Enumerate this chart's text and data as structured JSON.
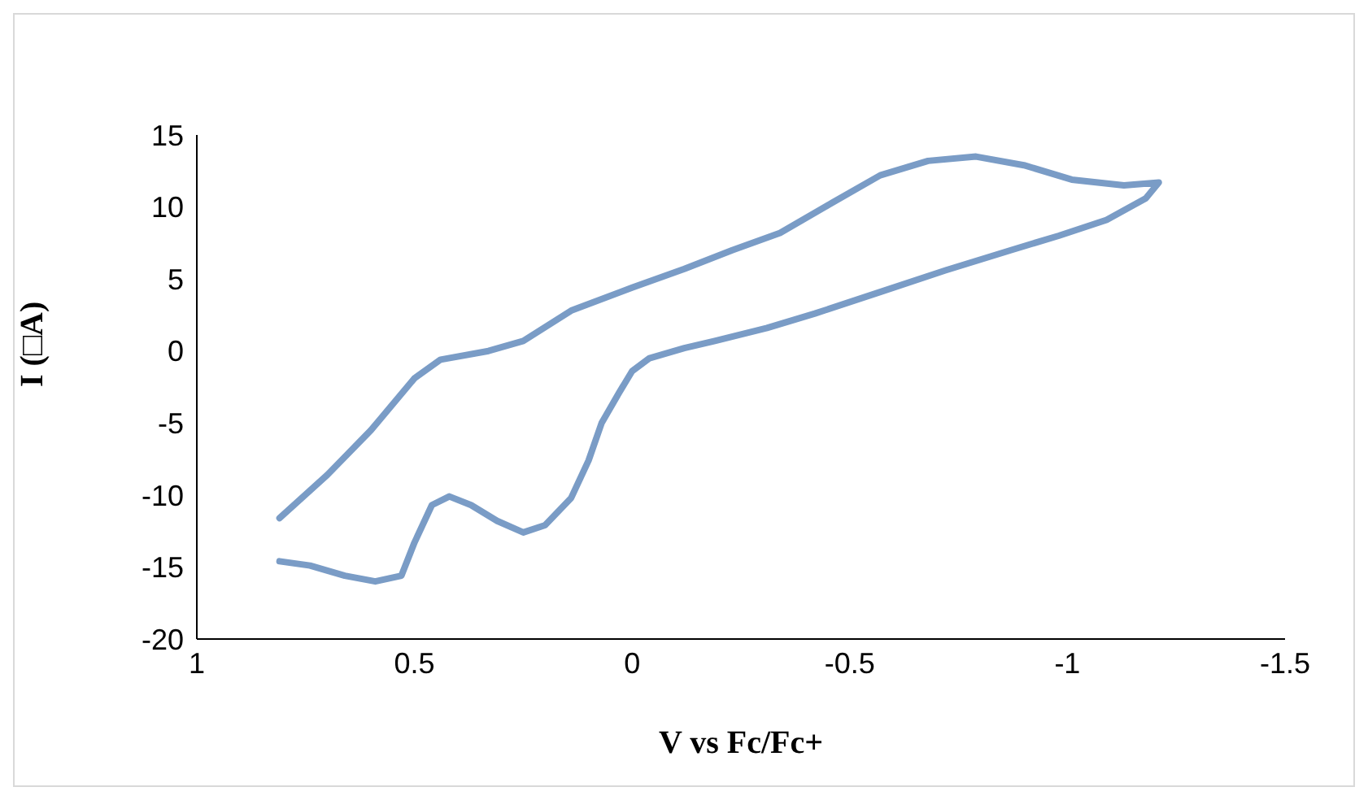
{
  "chart_data": {
    "type": "line",
    "xlabel": "V vs Fc/Fc+",
    "ylabel": "I (□A)",
    "xlim": [
      1,
      -1.5
    ],
    "xticks": [
      1,
      0.5,
      0,
      -0.5,
      -1,
      -1.5
    ],
    "ylim": [
      -20,
      15
    ],
    "yticks": [
      -20,
      -15,
      -10,
      -5,
      0,
      5,
      10,
      15
    ],
    "grid": false,
    "legend": false,
    "marker": "none",
    "line_style": "solid",
    "series": [
      {
        "color": "#7a9cc6",
        "x": [
          0.81,
          0.7,
          0.6,
          0.5,
          0.44,
          0.33,
          0.25,
          0.14,
          0,
          -0.12,
          -0.23,
          -0.34,
          -0.46,
          -0.57,
          -0.68,
          -0.79,
          -0.9,
          -1.01,
          -1.13,
          -1.21,
          -1.18,
          -1.09,
          -0.98,
          -0.87,
          -0.72,
          -0.57,
          -0.42,
          -0.31,
          -0.19,
          -0.12,
          -0.04,
          0,
          0.03,
          0.07,
          0.1,
          0.14,
          0.2,
          0.25,
          0.31,
          0.37,
          0.42,
          0.46,
          0.5,
          0.53,
          0.59,
          0.66,
          0.74,
          0.81
        ],
        "values": [
          -11.6,
          -8.6,
          -5.5,
          -1.9,
          -0.6,
          0,
          0.7,
          2.8,
          4.4,
          5.7,
          7,
          8.2,
          10.3,
          12.2,
          13.2,
          13.5,
          12.9,
          11.9,
          11.5,
          11.7,
          10.6,
          9.1,
          8,
          7,
          5.6,
          4.1,
          2.6,
          1.6,
          0.7,
          0.2,
          -0.5,
          -1.4,
          -2.9,
          -5,
          -7.6,
          -10.2,
          -12.1,
          -12.6,
          -11.8,
          -10.7,
          -10.1,
          -10.7,
          -13.3,
          -15.6,
          -16,
          -15.6,
          -14.9,
          -14.6
        ]
      }
    ]
  }
}
